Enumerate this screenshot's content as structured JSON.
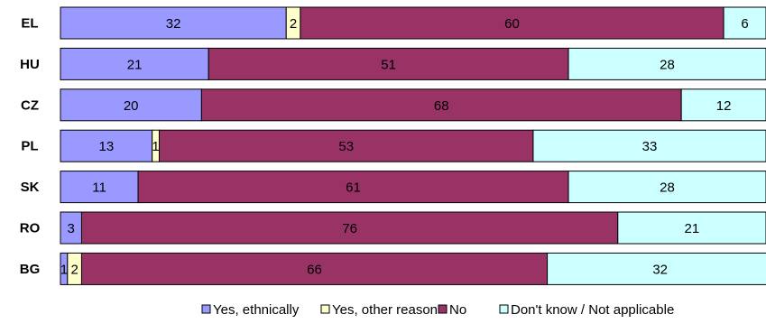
{
  "chart_data": {
    "type": "bar",
    "orientation": "horizontal",
    "stacked": true,
    "categories": [
      "EL",
      "HU",
      "CZ",
      "PL",
      "SK",
      "RO",
      "BG"
    ],
    "series": [
      {
        "name": "Yes, ethnically",
        "color": "#9999ff",
        "values": [
          32,
          21,
          20,
          13,
          11,
          3,
          1
        ]
      },
      {
        "name": "Yes, other reason",
        "color": "#ffffcc",
        "values": [
          2,
          0,
          0,
          1,
          0,
          0,
          2
        ]
      },
      {
        "name": "No",
        "color": "#993366",
        "values": [
          60,
          51,
          68,
          53,
          61,
          76,
          66
        ]
      },
      {
        "name": "Don't know / Not applicable",
        "color": "#ccffff",
        "values": [
          6,
          28,
          12,
          33,
          28,
          21,
          32
        ]
      }
    ],
    "xlim": [
      0,
      100
    ],
    "grid": false,
    "legend": "bottom"
  }
}
